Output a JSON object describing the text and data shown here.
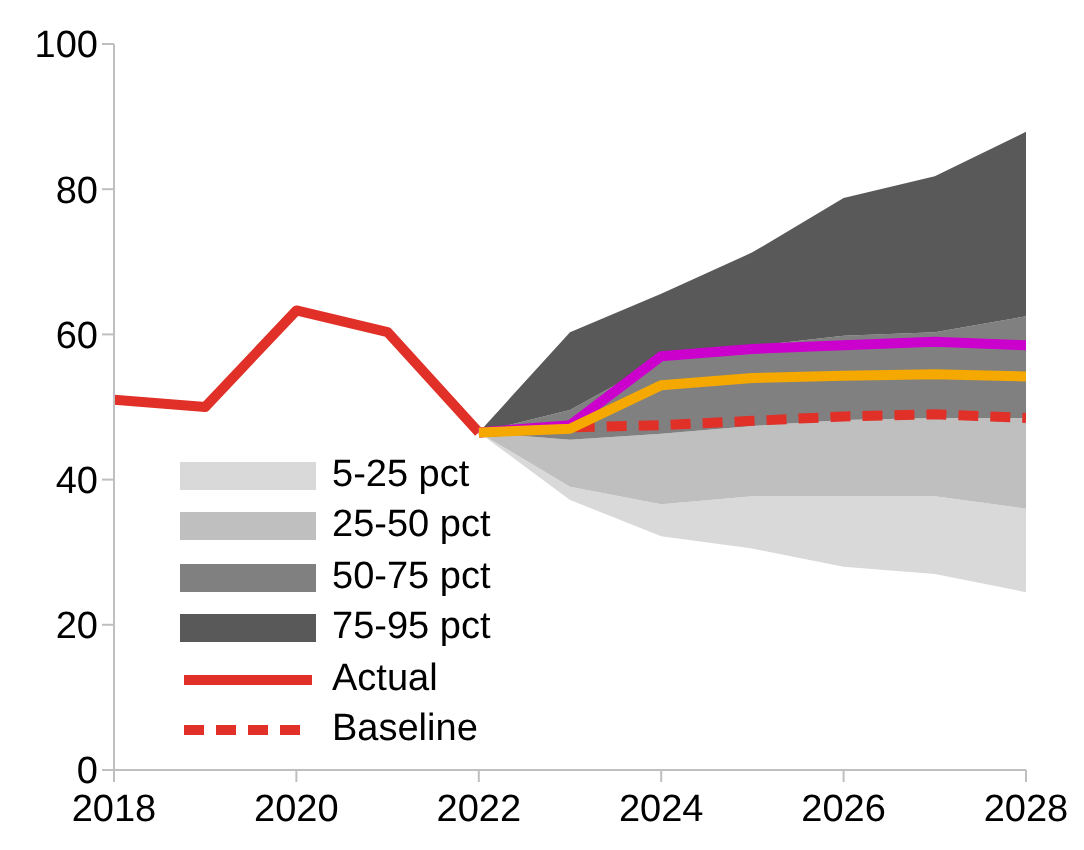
{
  "chart_data": {
    "type": "line",
    "x": [
      2018,
      2019,
      2020,
      2021,
      2022,
      2023,
      2024,
      2025,
      2026,
      2027,
      2028
    ],
    "xlim": [
      2018,
      2028
    ],
    "xticks": [
      2018,
      2020,
      2022,
      2024,
      2026,
      2028
    ],
    "ylim": [
      0,
      100
    ],
    "yticks": [
      0,
      20,
      40,
      60,
      80,
      100
    ],
    "legend": "bottom left",
    "series": [
      {
        "name": "5-25 pct",
        "type": "area",
        "color": "#d9d9d9",
        "lower": [
          null,
          null,
          null,
          null,
          46.5,
          37.2,
          32.2,
          30.5,
          28,
          27,
          24.5
        ],
        "upper": [
          null,
          null,
          null,
          null,
          46.5,
          39,
          36.6,
          37.7,
          37.7,
          37.7,
          36
        ],
        "values": [
          null,
          null,
          null,
          null,
          null,
          null,
          null,
          null,
          null,
          null,
          null
        ]
      },
      {
        "name": "25-50 pct",
        "type": "area",
        "color": "#bfbfbf",
        "lower": [
          null,
          null,
          null,
          null,
          46.5,
          39,
          36.6,
          37.7,
          37.7,
          37.7,
          36
        ],
        "upper": [
          null,
          null,
          null,
          null,
          46.5,
          45.5,
          46.3,
          47.4,
          48.2,
          48.5,
          48.5
        ],
        "values": [
          null,
          null,
          null,
          null,
          null,
          null,
          null,
          null,
          null,
          null,
          null
        ]
      },
      {
        "name": "50-75 pct",
        "type": "area",
        "color": "#808080",
        "lower": [
          null,
          null,
          null,
          null,
          46.5,
          45.5,
          46.3,
          47.4,
          48.2,
          48.5,
          48.5
        ],
        "upper": [
          null,
          null,
          null,
          null,
          46.5,
          49.6,
          56.5,
          58.4,
          59.8,
          60.3,
          62.5
        ],
        "values": [
          null,
          null,
          null,
          null,
          null,
          null,
          null,
          null,
          null,
          null,
          null
        ]
      },
      {
        "name": "75-95 pct",
        "type": "area",
        "color": "#595959",
        "lower": [
          null,
          null,
          null,
          null,
          46.5,
          49.6,
          56.5,
          58.4,
          59.8,
          60.3,
          62.5
        ],
        "upper": [
          null,
          null,
          null,
          null,
          46.5,
          60.3,
          65.6,
          71.3,
          78.8,
          81.8,
          87.9
        ],
        "values": [
          null,
          null,
          null,
          null,
          null,
          null,
          null,
          null,
          null,
          null,
          null
        ]
      },
      {
        "name": "Actual",
        "color": "#e03027",
        "values": [
          51,
          50,
          63.3,
          60.3,
          46.5,
          null,
          null,
          null,
          null,
          null,
          null
        ]
      },
      {
        "name": "Baseline",
        "color": "#e03027",
        "line_style": "dashed",
        "values": [
          null,
          null,
          null,
          null,
          46.5,
          47.2,
          47.5,
          48.1,
          48.7,
          49,
          48.5
        ]
      },
      {
        "color": "#cc00cc",
        "values": [
          null,
          null,
          null,
          null,
          46.5,
          47.5,
          57,
          58,
          58.5,
          59,
          58.5
        ]
      },
      {
        "color": "#f5a800",
        "values": [
          null,
          null,
          null,
          null,
          46.5,
          47,
          53,
          54,
          54.3,
          54.5,
          54.2
        ]
      }
    ]
  }
}
